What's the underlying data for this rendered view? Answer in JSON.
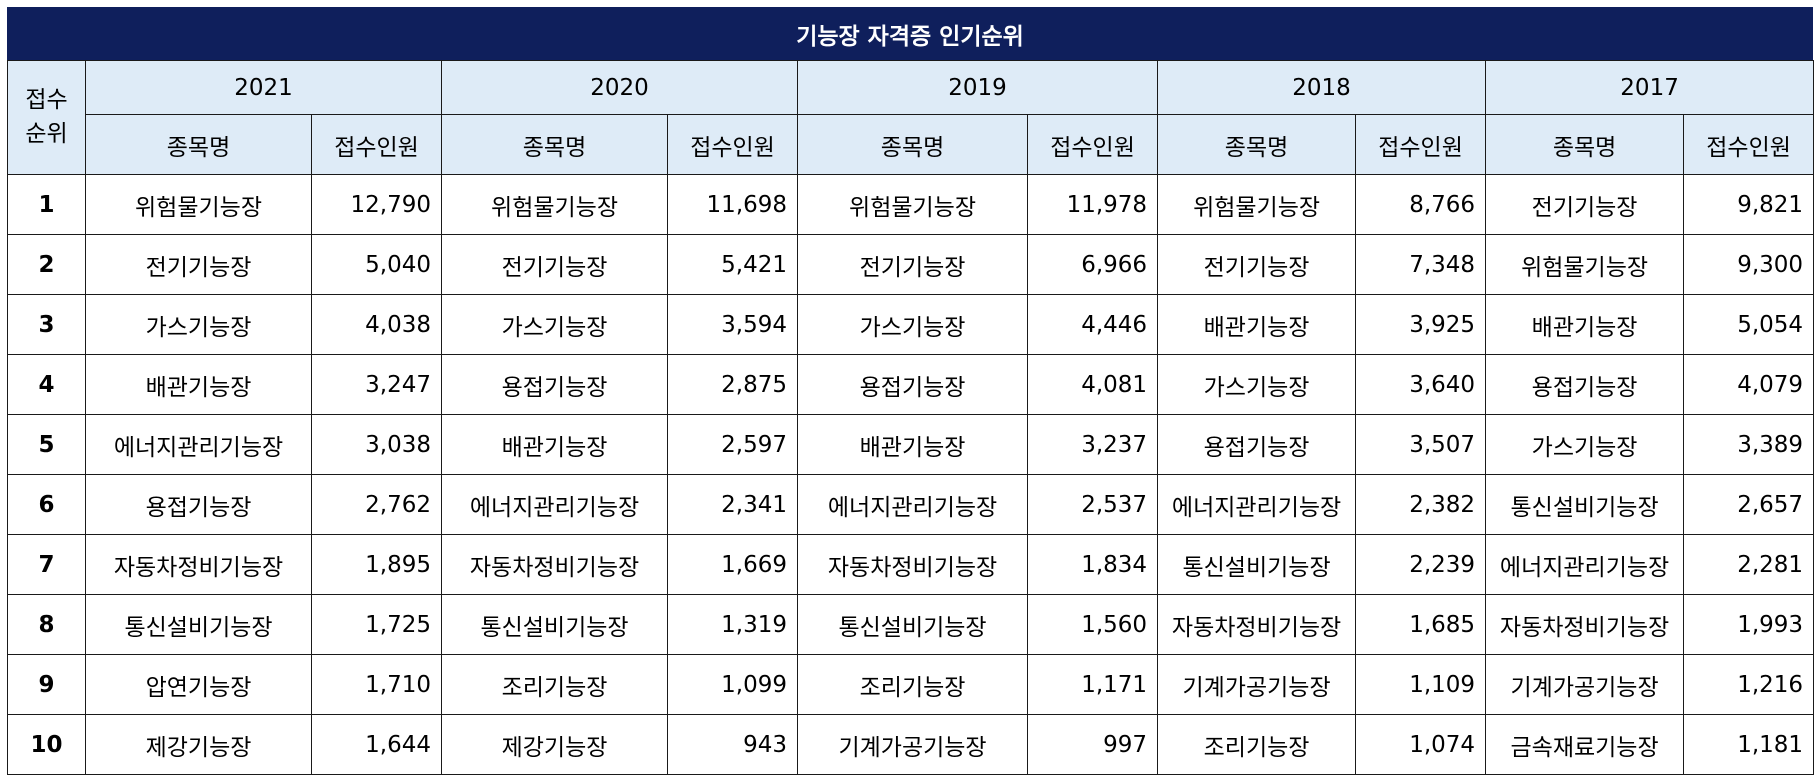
{
  "title": "기능장 자격증 인기순위",
  "header": {
    "rank": "접수\n순위",
    "name_col": "종목명",
    "count_col": "접수인원"
  },
  "years": [
    "2021",
    "2020",
    "2019",
    "2018",
    "2017"
  ],
  "rows": [
    {
      "rank": "1",
      "cells": [
        {
          "name": "위험물기능장",
          "count": "12,790"
        },
        {
          "name": "위험물기능장",
          "count": "11,698"
        },
        {
          "name": "위험물기능장",
          "count": "11,978"
        },
        {
          "name": "위험물기능장",
          "count": "8,766"
        },
        {
          "name": "전기기능장",
          "count": "9,821"
        }
      ]
    },
    {
      "rank": "2",
      "cells": [
        {
          "name": "전기기능장",
          "count": "5,040"
        },
        {
          "name": "전기기능장",
          "count": "5,421"
        },
        {
          "name": "전기기능장",
          "count": "6,966"
        },
        {
          "name": "전기기능장",
          "count": "7,348"
        },
        {
          "name": "위험물기능장",
          "count": "9,300"
        }
      ]
    },
    {
      "rank": "3",
      "cells": [
        {
          "name": "가스기능장",
          "count": "4,038"
        },
        {
          "name": "가스기능장",
          "count": "3,594"
        },
        {
          "name": "가스기능장",
          "count": "4,446"
        },
        {
          "name": "배관기능장",
          "count": "3,925"
        },
        {
          "name": "배관기능장",
          "count": "5,054"
        }
      ]
    },
    {
      "rank": "4",
      "cells": [
        {
          "name": "배관기능장",
          "count": "3,247"
        },
        {
          "name": "용접기능장",
          "count": "2,875"
        },
        {
          "name": "용접기능장",
          "count": "4,081"
        },
        {
          "name": "가스기능장",
          "count": "3,640"
        },
        {
          "name": "용접기능장",
          "count": "4,079"
        }
      ]
    },
    {
      "rank": "5",
      "cells": [
        {
          "name": "에너지관리기능장",
          "count": "3,038"
        },
        {
          "name": "배관기능장",
          "count": "2,597"
        },
        {
          "name": "배관기능장",
          "count": "3,237"
        },
        {
          "name": "용접기능장",
          "count": "3,507"
        },
        {
          "name": "가스기능장",
          "count": "3,389"
        }
      ]
    },
    {
      "rank": "6",
      "cells": [
        {
          "name": "용접기능장",
          "count": "2,762"
        },
        {
          "name": "에너지관리기능장",
          "count": "2,341"
        },
        {
          "name": "에너지관리기능장",
          "count": "2,537"
        },
        {
          "name": "에너지관리기능장",
          "count": "2,382"
        },
        {
          "name": "통신설비기능장",
          "count": "2,657"
        }
      ]
    },
    {
      "rank": "7",
      "cells": [
        {
          "name": "자동차정비기능장",
          "count": "1,895"
        },
        {
          "name": "자동차정비기능장",
          "count": "1,669"
        },
        {
          "name": "자동차정비기능장",
          "count": "1,834"
        },
        {
          "name": "통신설비기능장",
          "count": "2,239"
        },
        {
          "name": "에너지관리기능장",
          "count": "2,281"
        }
      ]
    },
    {
      "rank": "8",
      "cells": [
        {
          "name": "통신설비기능장",
          "count": "1,725"
        },
        {
          "name": "통신설비기능장",
          "count": "1,319"
        },
        {
          "name": "통신설비기능장",
          "count": "1,560"
        },
        {
          "name": "자동차정비기능장",
          "count": "1,685"
        },
        {
          "name": "자동차정비기능장",
          "count": "1,993"
        }
      ]
    },
    {
      "rank": "9",
      "cells": [
        {
          "name": "압연기능장",
          "count": "1,710"
        },
        {
          "name": "조리기능장",
          "count": "1,099"
        },
        {
          "name": "조리기능장",
          "count": "1,171"
        },
        {
          "name": "기계가공기능장",
          "count": "1,109"
        },
        {
          "name": "기계가공기능장",
          "count": "1,216"
        }
      ]
    },
    {
      "rank": "10",
      "cells": [
        {
          "name": "제강기능장",
          "count": "1,644"
        },
        {
          "name": "제강기능장",
          "count": "943"
        },
        {
          "name": "기계가공기능장",
          "count": "997"
        },
        {
          "name": "조리기능장",
          "count": "1,074"
        },
        {
          "name": "금속재료기능장",
          "count": "1,181"
        }
      ]
    }
  ],
  "colors": {
    "title_bg": "#0f1f5c",
    "header_bg": "#deebf7",
    "border": "#1a1a1a"
  }
}
